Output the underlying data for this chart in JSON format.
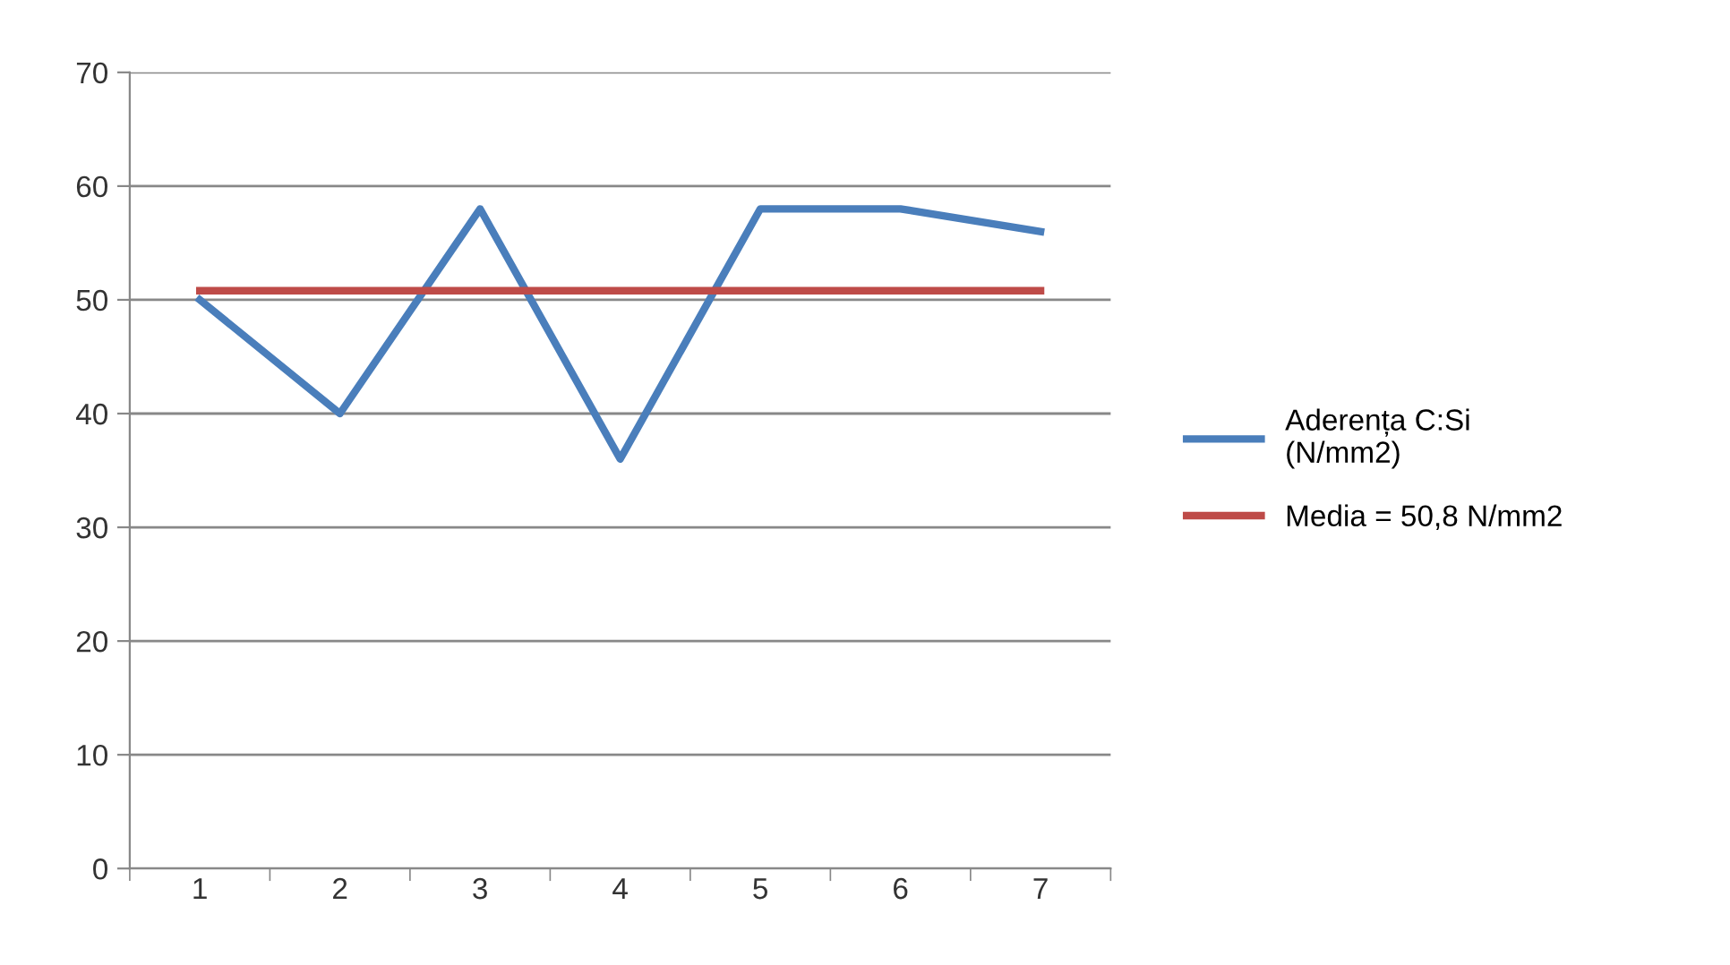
{
  "chart_data": {
    "type": "line",
    "categories": [
      "1",
      "2",
      "3",
      "4",
      "5",
      "6",
      "7"
    ],
    "series": [
      {
        "name": "Aderența C:Si\n(N/mm2)",
        "color": "#4a7ebb",
        "values": [
          50,
          40,
          58,
          36,
          58,
          58,
          56
        ]
      },
      {
        "name": "Media = 50,8 N/mm2",
        "color": "#be4b48",
        "values": [
          50.8,
          50.8,
          50.8,
          50.8,
          50.8,
          50.8,
          50.8
        ]
      }
    ],
    "ylim": [
      0,
      70
    ],
    "yticks": [
      0,
      10,
      20,
      30,
      40,
      50,
      60,
      70
    ],
    "grid": "y",
    "legend": "right",
    "marker": "none",
    "line_style": "solid"
  }
}
